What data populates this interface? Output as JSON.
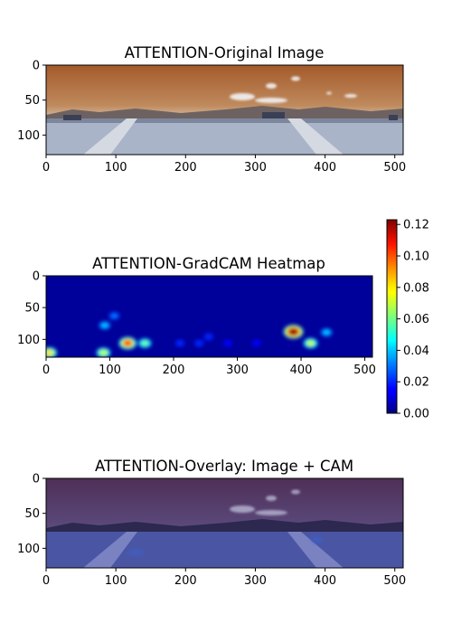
{
  "chart_data": [
    {
      "type": "image",
      "title": "ATTENTION-Original Image",
      "xlim": [
        0,
        512
      ],
      "ylim": [
        128,
        0
      ],
      "xticks": [
        0,
        100,
        200,
        300,
        400,
        500
      ],
      "yticks": [
        0,
        50,
        100
      ]
    },
    {
      "type": "heatmap",
      "title": "ATTENTION-GradCAM Heatmap",
      "xlim": [
        0,
        512
      ],
      "ylim": [
        128,
        0
      ],
      "xticks": [
        0,
        100,
        200,
        300,
        400,
        500
      ],
      "yticks": [
        0,
        50,
        100
      ],
      "colormap": "jet",
      "colorbar": {
        "min": 0.0,
        "max": 0.123,
        "ticks": [
          "0.00",
          "0.02",
          "0.04",
          "0.06",
          "0.08",
          "0.10",
          "0.12"
        ]
      },
      "hotspots": [
        {
          "x": 128,
          "y": 106,
          "value": 0.1
        },
        {
          "x": 155,
          "y": 106,
          "value": 0.06
        },
        {
          "x": 388,
          "y": 88,
          "value": 0.123
        },
        {
          "x": 415,
          "y": 106,
          "value": 0.07
        },
        {
          "x": 440,
          "y": 89,
          "value": 0.04
        },
        {
          "x": 92,
          "y": 78,
          "value": 0.04
        },
        {
          "x": 107,
          "y": 63,
          "value": 0.03
        },
        {
          "x": 90,
          "y": 121,
          "value": 0.07
        },
        {
          "x": 5,
          "y": 121,
          "value": 0.08
        },
        {
          "x": 255,
          "y": 96,
          "value": 0.02
        },
        {
          "x": 210,
          "y": 106,
          "value": 0.02
        },
        {
          "x": 240,
          "y": 106,
          "value": 0.02
        },
        {
          "x": 285,
          "y": 106,
          "value": 0.015
        },
        {
          "x": 330,
          "y": 106,
          "value": 0.015
        }
      ]
    },
    {
      "type": "image",
      "title": "ATTENTION-Overlay: Image + CAM",
      "xlim": [
        0,
        512
      ],
      "ylim": [
        128,
        0
      ],
      "xticks": [
        0,
        100,
        200,
        300,
        400,
        500
      ],
      "yticks": [
        0,
        50,
        100
      ]
    }
  ],
  "colors": {
    "jet_low": "#00008f",
    "jet_high": "#800000",
    "sky_warm": "#b0784a",
    "ground": "#aeb9cc",
    "overlay_tint": "#3c3782"
  }
}
